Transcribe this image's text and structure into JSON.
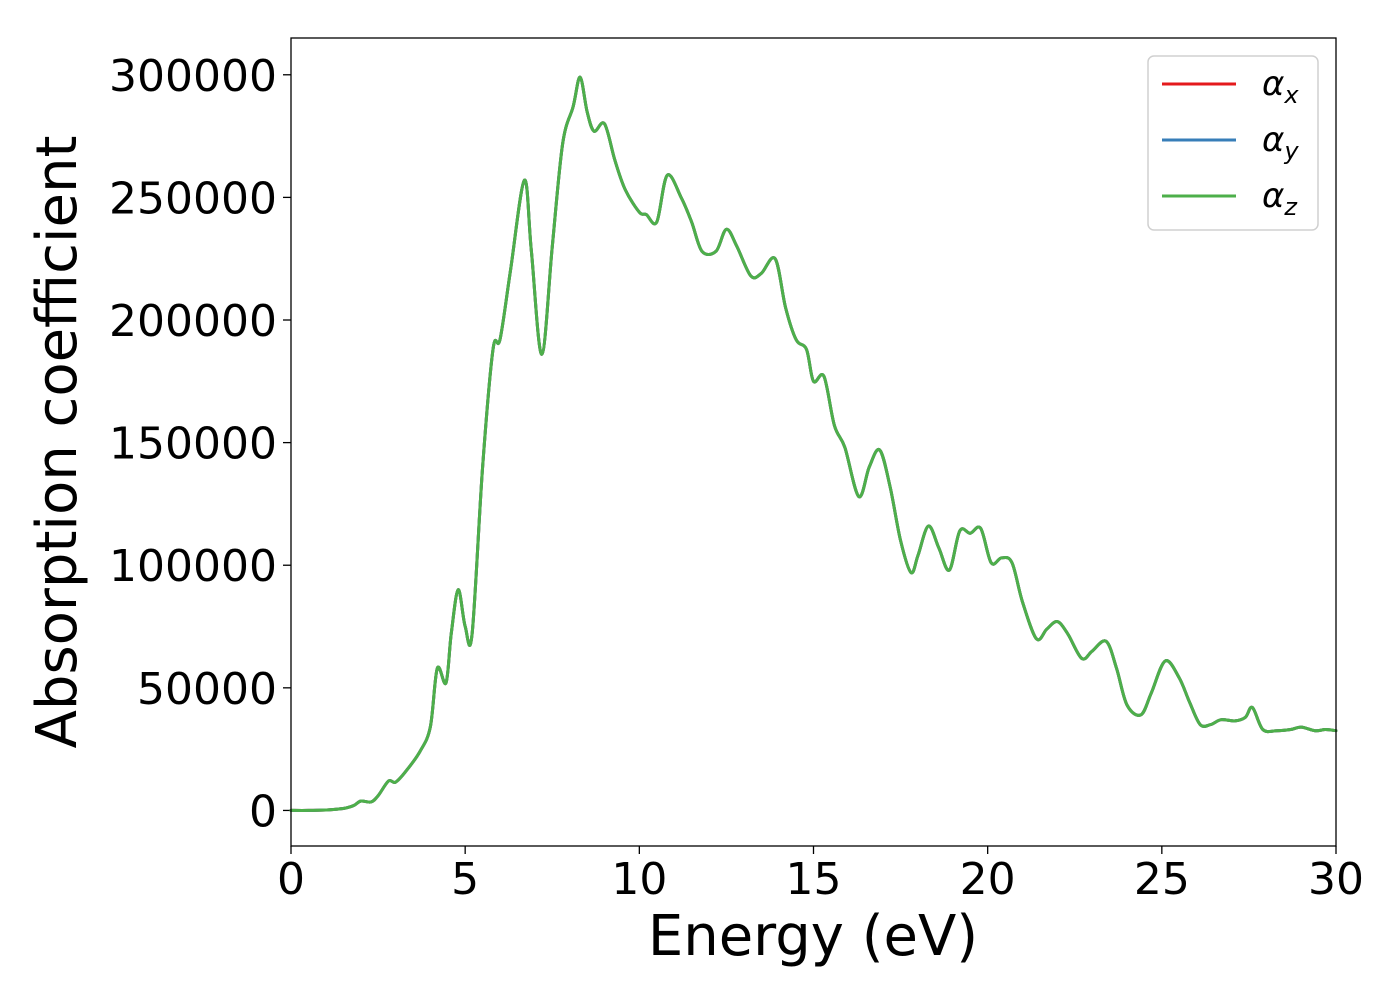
{
  "chart_data": {
    "type": "line",
    "title": "",
    "xlabel": "Energy (eV)",
    "ylabel": "Absorption coefficient",
    "xlim": [
      0,
      30
    ],
    "ylim": [
      -14500,
      315000
    ],
    "xticks": [
      0,
      5,
      10,
      15,
      20,
      25,
      30
    ],
    "yticks": [
      0,
      50000,
      100000,
      150000,
      200000,
      250000,
      300000
    ],
    "grid": false,
    "legend_position": "top-right",
    "series": [
      {
        "name": "αx",
        "symbol": "α",
        "sub": "x",
        "color": "#e41a1c"
      },
      {
        "name": "αy",
        "symbol": "α",
        "sub": "y",
        "color": "#377eb8"
      },
      {
        "name": "αz",
        "symbol": "α",
        "sub": "z",
        "color": "#4daf4a"
      }
    ],
    "x": [
      0,
      0.5,
      1.0,
      1.5,
      1.8,
      2.0,
      2.3,
      2.5,
      2.8,
      3.0,
      3.3,
      3.7,
      4.0,
      4.2,
      4.45,
      4.6,
      4.8,
      5.0,
      5.2,
      5.5,
      5.8,
      6.0,
      6.3,
      6.7,
      6.9,
      7.2,
      7.5,
      7.8,
      8.1,
      8.3,
      8.5,
      8.7,
      9.0,
      9.3,
      9.6,
      10.0,
      10.2,
      10.5,
      10.8,
      11.2,
      11.5,
      11.8,
      12.2,
      12.5,
      12.8,
      13.2,
      13.5,
      13.9,
      14.2,
      14.5,
      14.8,
      15.0,
      15.3,
      15.6,
      15.9,
      16.3,
      16.6,
      16.9,
      17.2,
      17.5,
      17.8,
      18.0,
      18.3,
      18.6,
      18.9,
      19.2,
      19.5,
      19.8,
      20.1,
      20.4,
      20.7,
      21.0,
      21.4,
      21.7,
      22.0,
      22.3,
      22.7,
      23.0,
      23.4,
      23.7,
      24.0,
      24.4,
      24.7,
      25.1,
      25.5,
      25.8,
      26.1,
      26.4,
      26.7,
      27.1,
      27.4,
      27.6,
      27.9,
      28.3,
      28.7,
      29.0,
      29.4,
      29.7,
      30.0
    ],
    "values": [
      0,
      0,
      200,
      800,
      2000,
      3800,
      3500,
      6000,
      12000,
      11500,
      16000,
      24000,
      34000,
      58000,
      52000,
      72000,
      90000,
      75000,
      72000,
      140000,
      188000,
      192000,
      220000,
      257000,
      228000,
      186000,
      230000,
      272000,
      287000,
      299000,
      285000,
      277000,
      280000,
      265000,
      253000,
      244000,
      243000,
      240000,
      259000,
      250000,
      240000,
      228000,
      228000,
      237000,
      230000,
      218000,
      219000,
      225000,
      205000,
      192000,
      188000,
      175000,
      177000,
      157000,
      148000,
      128000,
      140000,
      147000,
      132000,
      110000,
      97000,
      104000,
      116000,
      107000,
      98000,
      114000,
      113000,
      115000,
      101000,
      103000,
      101000,
      85000,
      70000,
      74000,
      77000,
      72000,
      62000,
      65000,
      69000,
      58000,
      43000,
      39000,
      48000,
      61000,
      54000,
      44000,
      35000,
      35000,
      37000,
      36500,
      38000,
      42000,
      33000,
      32500,
      33000,
      34000,
      32500,
      33000,
      32500
    ]
  }
}
